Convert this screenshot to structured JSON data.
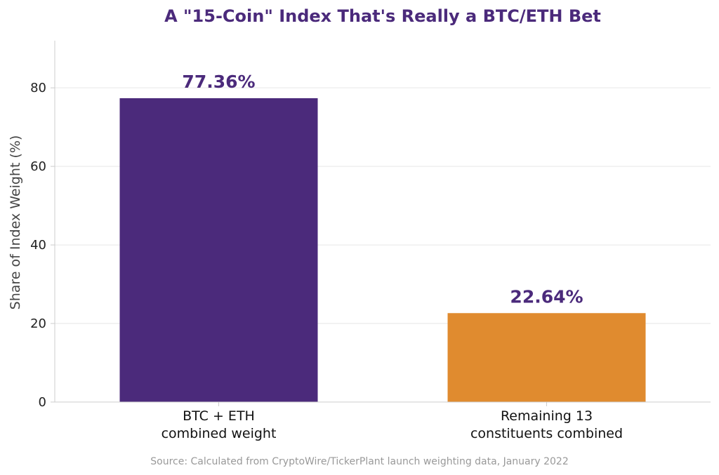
{
  "chart_data": {
    "type": "bar",
    "title": "A \"15-Coin\" Index That's Really a BTC/ETH Bet",
    "xlabel": "",
    "ylabel": "Share of Index Weight (%)",
    "ylim": [
      0,
      92
    ],
    "yticks": [
      0,
      20,
      40,
      60,
      80
    ],
    "grid": true,
    "categories": [
      [
        "BTC + ETH",
        "combined weight"
      ],
      [
        "Remaining 13",
        "constituents combined"
      ]
    ],
    "values": [
      77.36,
      22.64
    ],
    "data_labels": [
      "77.36%",
      "22.64%"
    ],
    "colors": [
      "#4b2a7b",
      "#e08b2f"
    ],
    "label_color": "#4b2a7b",
    "title_color": "#4b2a7b",
    "source": "Source: Calculated from CryptoWire/TickerPlant launch weighting data, January 2022"
  }
}
